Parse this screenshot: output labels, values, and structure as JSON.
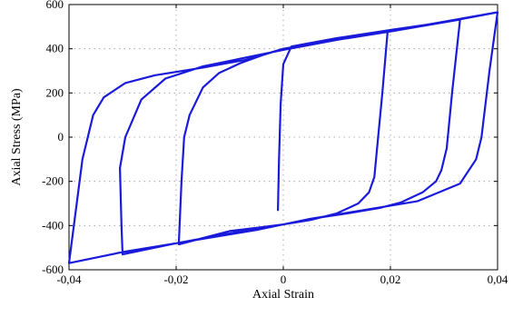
{
  "chart_data": {
    "type": "line",
    "title": "",
    "xlabel": "Axial Strain",
    "ylabel": "Axial Stress (MPa)",
    "xlim": [
      -0.04,
      0.04
    ],
    "ylim": [
      -600,
      600
    ],
    "x_ticks": [
      -0.04,
      -0.02,
      0,
      0.02,
      0.04
    ],
    "x_tick_labels": [
      "-0,04",
      "-0,02",
      "0",
      "0,02",
      "0,04"
    ],
    "y_ticks": [
      -600,
      -400,
      -200,
      0,
      200,
      400,
      600
    ],
    "y_tick_labels": [
      "-600",
      "-400",
      "-200",
      "0",
      "200",
      "400",
      "600"
    ],
    "grid": true,
    "line_color": "#1a1adb",
    "series": [
      {
        "values": [
          [
            -0.001,
            -330
          ],
          [
            -0.0008,
            -100
          ],
          [
            -0.0005,
            150
          ],
          [
            0.0,
            330
          ],
          [
            0.0015,
            410
          ],
          [
            0.01,
            448
          ],
          [
            0.0195,
            483
          ],
          [
            0.0185,
            200
          ],
          [
            0.0175,
            -50
          ],
          [
            0.017,
            -180
          ],
          [
            0.016,
            -250
          ],
          [
            0.014,
            -300
          ],
          [
            0.01,
            -345
          ],
          [
            0.005,
            -375
          ],
          [
            0.0,
            -395
          ],
          [
            -0.005,
            -410
          ],
          [
            -0.01,
            -425
          ],
          [
            -0.0195,
            -485
          ],
          [
            -0.019,
            -200
          ],
          [
            -0.0185,
            0
          ],
          [
            -0.0175,
            100
          ],
          [
            -0.015,
            225
          ],
          [
            -0.012,
            290
          ],
          [
            -0.008,
            335
          ],
          [
            -0.004,
            370
          ],
          [
            0.0,
            400
          ],
          [
            0.01,
            440
          ],
          [
            0.0205,
            480
          ],
          [
            0.033,
            532
          ],
          [
            0.0315,
            200
          ],
          [
            0.0305,
            -50
          ],
          [
            0.0295,
            -150
          ],
          [
            0.0285,
            -200
          ],
          [
            0.026,
            -250
          ],
          [
            0.022,
            -295
          ],
          [
            0.018,
            -320
          ],
          [
            0.012,
            -345
          ],
          [
            0.005,
            -370
          ],
          [
            0.0,
            -395
          ],
          [
            -0.005,
            -420
          ],
          [
            -0.01,
            -440
          ],
          [
            -0.02,
            -480
          ],
          [
            -0.03,
            -530
          ],
          [
            -0.0302,
            -400
          ],
          [
            -0.0305,
            -140
          ],
          [
            -0.0295,
            0
          ],
          [
            -0.0265,
            170
          ],
          [
            -0.022,
            265
          ],
          [
            -0.015,
            320
          ],
          [
            -0.008,
            355
          ],
          [
            0.0,
            395
          ],
          [
            0.01,
            440
          ],
          [
            0.02,
            485
          ],
          [
            0.03,
            520
          ],
          [
            0.04,
            565
          ],
          [
            0.0385,
            300
          ],
          [
            0.037,
            0
          ],
          [
            0.036,
            -100
          ],
          [
            0.033,
            -210
          ],
          [
            0.025,
            -290
          ],
          [
            0.015,
            -330
          ],
          [
            0.005,
            -370
          ],
          [
            0.0,
            -395
          ],
          [
            -0.01,
            -435
          ],
          [
            -0.02,
            -480
          ],
          [
            -0.03,
            -520
          ],
          [
            -0.04,
            -570
          ],
          [
            -0.0375,
            -100
          ],
          [
            -0.0365,
            0
          ],
          [
            -0.0355,
            100
          ],
          [
            -0.0335,
            180
          ],
          [
            -0.0295,
            245
          ],
          [
            -0.024,
            280
          ],
          [
            -0.015,
            315
          ],
          [
            -0.007,
            350
          ],
          [
            0.0,
            400
          ],
          [
            0.01,
            442
          ],
          [
            0.02,
            480
          ],
          [
            0.04,
            565
          ]
        ]
      }
    ]
  }
}
